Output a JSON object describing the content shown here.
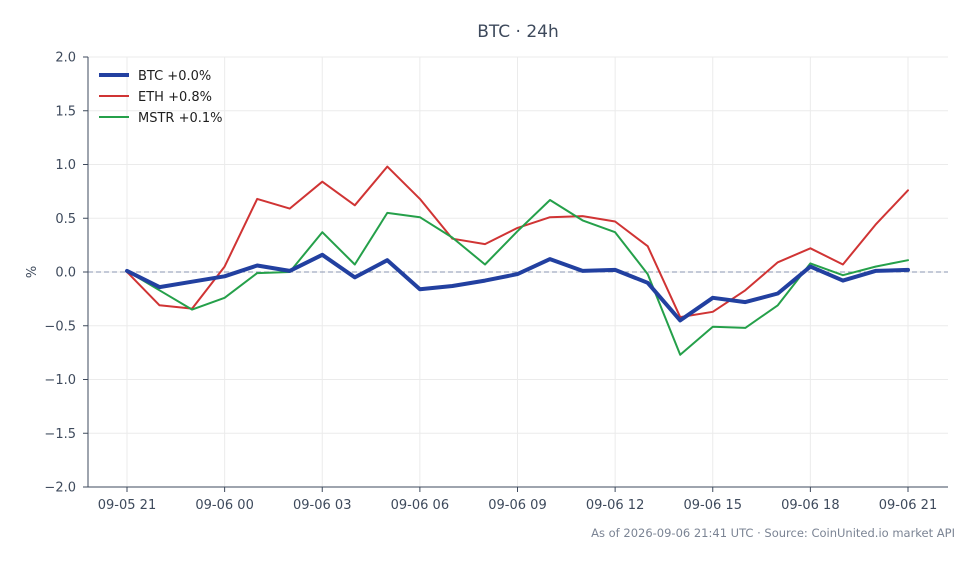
{
  "chart_data": {
    "type": "line",
    "title": "BTC · 24h",
    "ylabel": "%",
    "xlabel": "",
    "ylim": [
      -2.0,
      2.0
    ],
    "y_ticks": [
      "2.0",
      "1.5",
      "1.0",
      "0.5",
      "0.0",
      "−0.5",
      "−1.0",
      "−1.5",
      "−2.0"
    ],
    "x_ticks": [
      "09-05 21",
      "09-06 00",
      "09-06 03",
      "09-06 06",
      "09-06 09",
      "09-06 12",
      "09-06 15",
      "09-06 18",
      "09-06 21"
    ],
    "x": [
      "09-05 21:00",
      "09-05 22:00",
      "09-05 23:00",
      "09-06 00:00",
      "09-06 01:00",
      "09-06 02:00",
      "09-06 03:00",
      "09-06 04:00",
      "09-06 05:00",
      "09-06 06:00",
      "09-06 07:00",
      "09-06 08:00",
      "09-06 09:00",
      "09-06 10:00",
      "09-06 11:00",
      "09-06 12:00",
      "09-06 13:00",
      "09-06 14:00",
      "09-06 15:00",
      "09-06 16:00",
      "09-06 17:00",
      "09-06 18:00",
      "09-06 19:00",
      "09-06 20:00",
      "09-06 21:00"
    ],
    "baseline": 0.0,
    "grid": true,
    "legend_position": "top-left",
    "series": [
      {
        "name": "BTC +0.0%",
        "color": "#2240a0",
        "values": [
          0.01,
          -0.14,
          -0.09,
          -0.04,
          0.06,
          0.01,
          0.16,
          -0.05,
          0.11,
          -0.16,
          -0.13,
          -0.08,
          -0.02,
          0.12,
          0.01,
          0.02,
          -0.1,
          -0.45,
          -0.24,
          -0.28,
          -0.2,
          0.05,
          -0.08,
          0.01,
          0.02
        ]
      },
      {
        "name": "ETH +0.8%",
        "color": "#d03434",
        "values": [
          0.0,
          -0.31,
          -0.34,
          0.05,
          0.68,
          0.59,
          0.84,
          0.62,
          0.98,
          0.68,
          0.31,
          0.26,
          0.41,
          0.51,
          0.52,
          0.47,
          0.24,
          -0.42,
          -0.37,
          -0.17,
          0.09,
          0.22,
          0.07,
          0.44,
          0.76
        ]
      },
      {
        "name": "MSTR +0.1%",
        "color": "#25a04a",
        "values": [
          0.01,
          -0.17,
          -0.35,
          -0.24,
          -0.01,
          0.0,
          0.37,
          0.07,
          0.55,
          0.51,
          0.32,
          0.07,
          0.38,
          0.67,
          0.48,
          0.37,
          -0.02,
          -0.77,
          -0.51,
          -0.52,
          -0.31,
          0.08,
          -0.03,
          0.05,
          0.11
        ]
      }
    ],
    "footer": "As of 2026-09-06 21:41 UTC · Source: CoinUnited.io market API"
  }
}
